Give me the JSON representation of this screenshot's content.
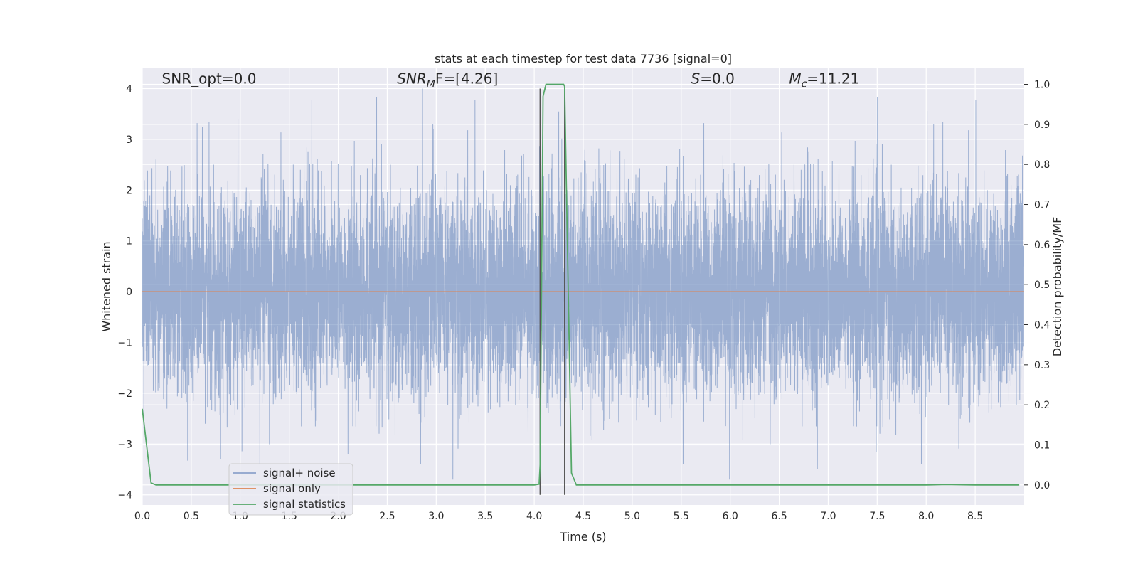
{
  "chart_data": {
    "type": "line",
    "title": "stats at each timestep for test data 7736 [signal=0]",
    "xlabel": "Time (s)",
    "ylabel": "Whitened strain",
    "y2label": "Detection probability/MF",
    "xlim": [
      0,
      9.0
    ],
    "ylim": [
      -4.2,
      4.4
    ],
    "y2lim": [
      -0.05,
      1.04
    ],
    "xticks": [
      0.0,
      0.5,
      1.0,
      1.5,
      2.0,
      2.5,
      3.0,
      3.5,
      4.0,
      4.5,
      5.0,
      5.5,
      6.0,
      6.5,
      7.0,
      7.5,
      8.0,
      8.5
    ],
    "xtick_labels": [
      "0.0",
      "0.5",
      "1.0",
      "1.5",
      "2.0",
      "2.5",
      "3.0",
      "3.5",
      "4.0",
      "4.5",
      "5.0",
      "5.5",
      "6.0",
      "6.5",
      "7.0",
      "7.5",
      "8.0",
      "8.5"
    ],
    "yticks": [
      4,
      3,
      2,
      1,
      0,
      -1,
      -2,
      -3,
      -4
    ],
    "ytick_labels": [
      "4",
      "3",
      "2",
      "1",
      "0",
      "−1",
      "−2",
      "−3",
      "−4"
    ],
    "y2ticks": [
      1.0,
      0.9,
      0.8,
      0.7,
      0.6,
      0.5,
      0.4,
      0.3,
      0.2,
      0.1,
      0.0
    ],
    "y2tick_labels": [
      "1.0",
      "0.9",
      "0.8",
      "0.7",
      "0.6",
      "0.5",
      "0.4",
      "0.3",
      "0.2",
      "0.1",
      "0.0"
    ],
    "grid": true,
    "legend_position": "lower-left",
    "colors": {
      "background": "#eaeaf2",
      "grid": "#ffffff",
      "noise": "#4c72b0",
      "signal": "#dd8452",
      "statistics": "#55a868",
      "marker": "#555555"
    },
    "annotations": [
      {
        "text": "SNR_opt=0.0",
        "x": 0.2,
        "y": 4.1
      },
      {
        "base": "SNR",
        "sub": "M",
        "tail": "F=[4.26]",
        "x": 2.6,
        "y": 4.1
      },
      {
        "italic": "S",
        "tail": "=0.0",
        "x": 5.6,
        "y": 4.1
      },
      {
        "base": "M",
        "sub": "c",
        "tail": "=11.21",
        "x": 6.6,
        "y": 4.1
      }
    ],
    "markers": [
      {
        "x": 4.06,
        "y_top": 4.0,
        "y_bottom": -4.0
      },
      {
        "x": 4.31,
        "y_top": 4.0,
        "y_bottom": -4.0
      }
    ],
    "series": [
      {
        "name": "signal+ noise",
        "kind": "whitened-noise",
        "duration": 9.0,
        "sample_rate": 1024,
        "std": 1.0,
        "y_min": -3.7,
        "y_max": 4.0,
        "spikes": [
          {
            "x": 0.56,
            "y": 3.32
          },
          {
            "x": 1.73,
            "y": 3.78
          },
          {
            "x": 2.86,
            "y": 4.0
          },
          {
            "x": 2.97,
            "y": 3.2
          },
          {
            "x": 4.25,
            "y": 3.55
          },
          {
            "x": 5.73,
            "y": 3.32
          },
          {
            "x": 8.01,
            "y": 3.56
          },
          {
            "x": 8.17,
            "y": 3.35
          },
          {
            "x": 0.8,
            "y": -3.3
          },
          {
            "x": 1.2,
            "y": -3.4
          },
          {
            "x": 3.17,
            "y": -3.7
          },
          {
            "x": 5.52,
            "y": -3.4
          },
          {
            "x": 6.89,
            "y": -3.5
          },
          {
            "x": 7.49,
            "y": -3.15
          },
          {
            "x": 2.1,
            "y": -3.2
          }
        ]
      },
      {
        "name": "signal only",
        "x": [
          0.0,
          9.0
        ],
        "y": [
          0.0,
          0.0
        ]
      },
      {
        "name": "signal statistics",
        "axis": "right",
        "x": [
          0.0,
          0.09,
          0.14,
          0.5,
          1.0,
          2.0,
          3.0,
          4.0,
          4.05,
          4.06,
          4.09,
          4.12,
          4.3,
          4.31,
          4.38,
          4.43,
          4.5,
          5.0,
          6.0,
          7.0,
          8.0,
          8.2,
          8.5,
          8.95
        ],
        "y": [
          0.19,
          0.005,
          0.0,
          0.0,
          0.0,
          0.0,
          0.0,
          0.0,
          0.002,
          0.05,
          0.97,
          1.0,
          1.0,
          0.995,
          0.03,
          0.0,
          0.0,
          0.0,
          0.0,
          0.0,
          0.0,
          0.001,
          0.0,
          0.0
        ]
      }
    ]
  }
}
